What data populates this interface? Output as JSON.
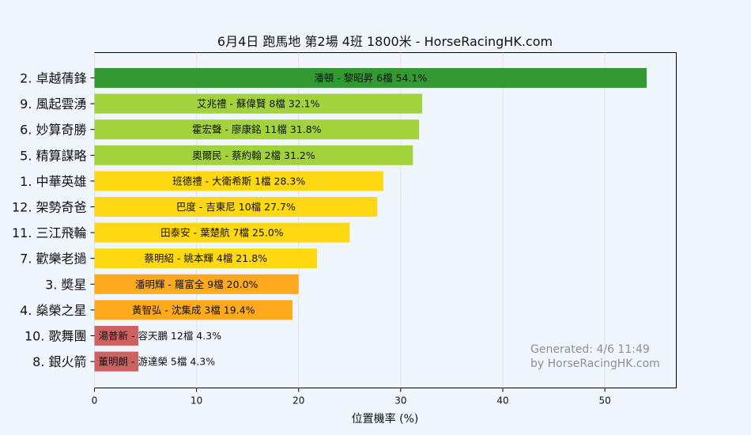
{
  "chart_data": {
    "type": "bar",
    "orientation": "horizontal",
    "title": "6月4日  跑馬地  第2場  4班  1800米 - HorseRacingHK.com",
    "xlabel": "位置機率 (%)",
    "ylabel": "",
    "xlim": [
      0,
      57
    ],
    "xticks": [
      0,
      10,
      20,
      30,
      40,
      50
    ],
    "grid": true,
    "categories": [
      "2. 卓越蒨鋒",
      "9. 風起雲湧",
      "6. 妙算奇勝",
      "5. 精算謀略",
      "1. 中華英雄",
      "12. 架勢奇爸",
      "11. 三江飛輪",
      "7. 歡樂老撾",
      "3. 奬星",
      "4. 燊榮之星",
      "10. 歌舞團",
      "8. 銀火箭"
    ],
    "values": [
      54.1,
      32.1,
      31.8,
      31.2,
      28.3,
      27.7,
      25.0,
      21.8,
      20.0,
      19.4,
      4.3,
      4.3
    ],
    "bar_labels": [
      "潘頓 - 黎昭昇 6檔  54.1%",
      "艾兆禮 - 蘇偉賢 8檔  32.1%",
      "霍宏聲 - 廖康銘 11檔  31.8%",
      "奧爾民 - 蔡約翰 2檔  31.2%",
      "班德禮 - 大衛希斯 1檔  28.3%",
      "巴度 - 吉東尼 10檔  27.7%",
      "田泰安 - 葉楚航 7檔  25.0%",
      "蔡明紹 - 姚本輝 4檔  21.8%",
      "潘明輝 - 羅富全 9檔  20.0%",
      "黃智弘 - 沈集成 3檔  19.4%",
      "湯普新 - 容天鵬 12檔  4.3%",
      "董明朗 - 游達榮 5檔  4.3%"
    ],
    "bar_colors": [
      "#339933",
      "#a2d33d",
      "#a2d33d",
      "#a2d33d",
      "#ffd814",
      "#ffd814",
      "#ffd814",
      "#ffd814",
      "#ffaa1e",
      "#ffaa1e",
      "#cd6262",
      "#cd6262"
    ],
    "annotation": [
      "Generated: 4/6 11:49",
      "by HorseRacingHK.com"
    ]
  }
}
